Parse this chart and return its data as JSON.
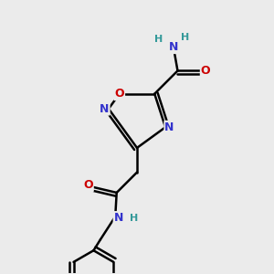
{
  "background_color": "#ebebeb",
  "atom_colors": {
    "C": "#000000",
    "N": "#3333cc",
    "O": "#cc0000",
    "H": "#339999"
  },
  "bond_color": "#000000",
  "bond_width": 1.8,
  "font_size": 9
}
